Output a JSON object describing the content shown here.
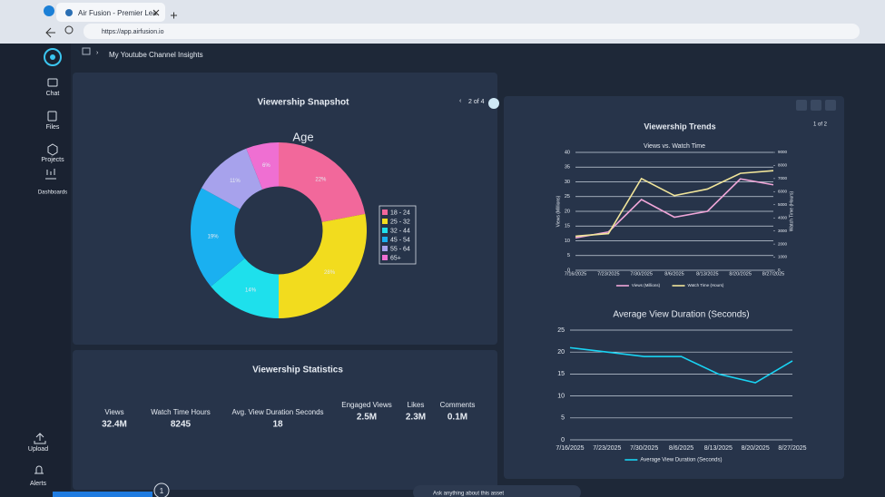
{
  "browser": {
    "tab_title": "Air Fusion - Premier Lea",
    "url": "https://app.airfusion.io"
  },
  "sidebar": {
    "items": [
      "Chat",
      "Files",
      "Projects",
      "Dashboards"
    ],
    "bottom_items": [
      "Upload",
      "Alerts"
    ]
  },
  "breadcrumb": "My Youtube Channel Insights",
  "snapshot": {
    "title": "Viewership Snapshot",
    "pager": "2 of 4",
    "chart_data": {
      "type": "pie",
      "title": "Age",
      "donut": true,
      "categories": [
        "18 - 24",
        "25 - 32",
        "32 - 44",
        "45 - 54",
        "55 - 64",
        "65+"
      ],
      "values": [
        22,
        28,
        14,
        19,
        11,
        6
      ],
      "value_labels": [
        "22%",
        "28%",
        "14%",
        "19%",
        "11%",
        "6%"
      ],
      "colors": [
        "#f2689b",
        "#f2dc1e",
        "#1ee0ec",
        "#1ab0f0",
        "#a7a2ec",
        "#ef6fd2"
      ],
      "legend": "right"
    }
  },
  "statistics": {
    "title": "Viewership Statistics",
    "items": [
      {
        "label": "Views",
        "value": "32.4M"
      },
      {
        "label": "Watch Time Hours",
        "value": 8245
      },
      {
        "label": "Avg. View Duration Seconds",
        "value": 18
      },
      {
        "label": "Engaged Views",
        "value": "2.5M"
      },
      {
        "label": "Likes",
        "value": "2.3M"
      },
      {
        "label": "Comments",
        "value": "0.1M"
      }
    ]
  },
  "trends": {
    "title": "Viewership Trends",
    "pager": "1 of 2",
    "chart_data": [
      {
        "type": "line",
        "title": "Views vs. Watch Time",
        "x": [
          "7/16/2025",
          "7/23/2025",
          "7/30/2025",
          "8/6/2025",
          "8/13/2025",
          "8/20/2025",
          "8/27/2025"
        ],
        "ylabel": "Views (Millions)",
        "y2label": "Watch Time (Hours)",
        "ylim": [
          0,
          40
        ],
        "yticks": [
          0,
          5,
          10,
          15,
          20,
          25,
          30,
          35,
          40
        ],
        "y2lim": [
          0,
          9000
        ],
        "y2ticks": [
          0,
          1000,
          2000,
          3000,
          4000,
          5000,
          6000,
          7000,
          8000,
          9000
        ],
        "grid": true,
        "legend": "bottom",
        "series": [
          {
            "name": "Views (Millions)",
            "color": "#f0a6d8",
            "values": [
              11,
              13,
              24,
              18,
              20,
              31,
              29
            ]
          },
          {
            "name": "Watch Time (Hours)",
            "color": "#f1e59a",
            "axis": "y2",
            "values": [
              2600,
              2800,
              7000,
              5700,
              6200,
              7400,
              7600
            ]
          }
        ]
      },
      {
        "type": "line",
        "title": "Average View Duration (Seconds)",
        "x": [
          "7/16/2025",
          "7/23/2025",
          "7/30/2025",
          "8/6/2025",
          "8/13/2025",
          "8/20/2025",
          "8/27/2025"
        ],
        "ylim": [
          0,
          25
        ],
        "yticks": [
          0,
          5,
          10,
          15,
          20,
          25
        ],
        "grid": true,
        "legend": "bottom",
        "series": [
          {
            "name": "Average View Duration (Seconds)",
            "color": "#19d3f3",
            "values": [
              21,
              20,
              19,
              19,
              15,
              13,
              18
            ]
          }
        ]
      }
    ]
  },
  "chat": {
    "placeholder": "Ask anything about this asset",
    "badge": "1"
  }
}
